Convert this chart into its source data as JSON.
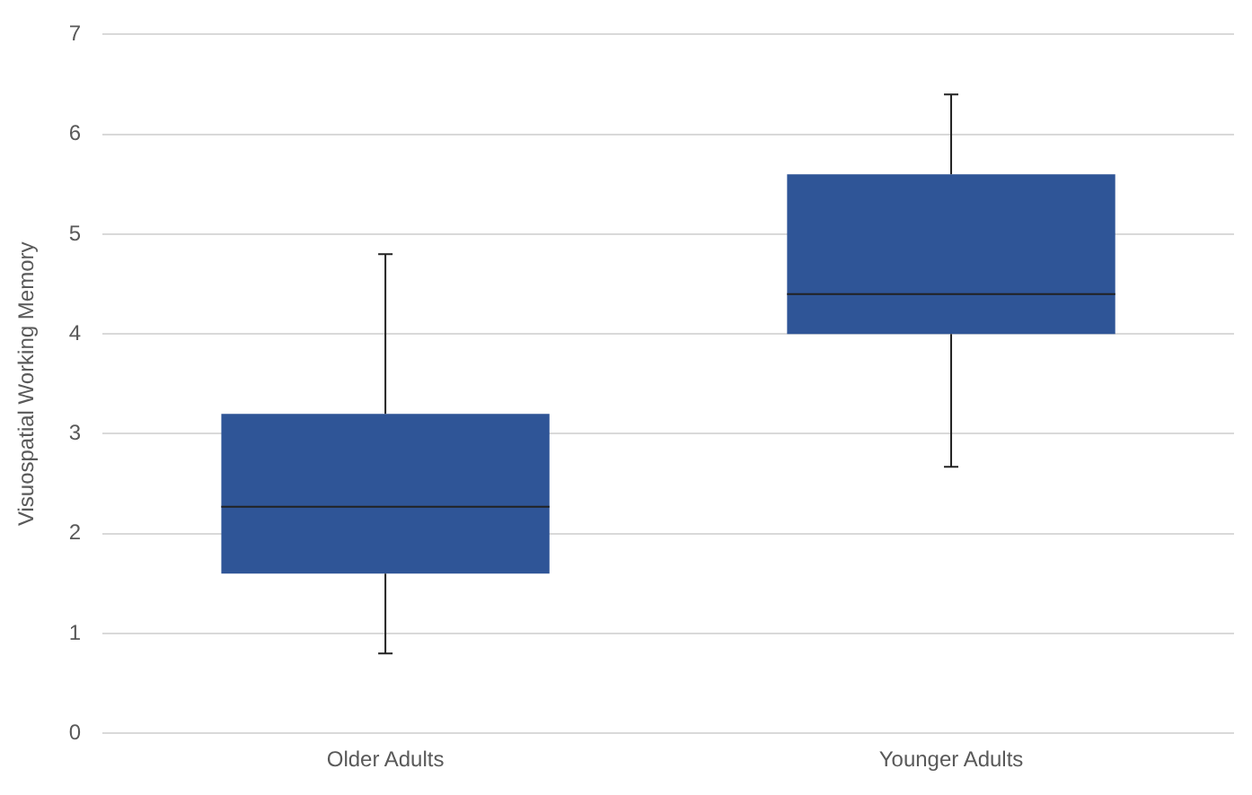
{
  "chart_data": {
    "type": "box",
    "ylabel": "Visuospatial Working Memory",
    "categories": [
      "Older Adults",
      "Younger Adults"
    ],
    "color": "#2f5597",
    "boxes": [
      {
        "low": 0.8,
        "q1": 1.6,
        "median": 2.27,
        "q3": 3.2,
        "high": 4.8
      },
      {
        "low": 2.67,
        "q1": 4.0,
        "median": 4.4,
        "q3": 5.6,
        "high": 6.4
      }
    ],
    "ylim": [
      0,
      7
    ],
    "yticks": [
      0,
      1,
      2,
      3,
      4,
      5,
      6,
      7
    ],
    "grid": "y",
    "legend": false
  }
}
